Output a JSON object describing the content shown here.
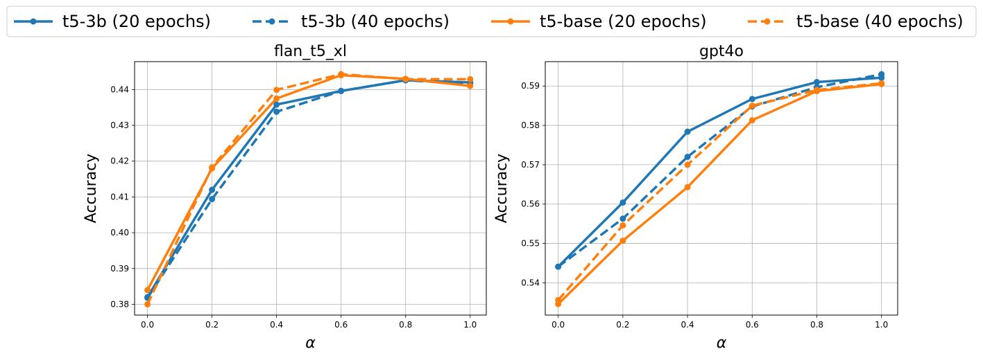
{
  "chart_data": {
    "type": "line",
    "legend": {
      "placement": "top",
      "entries": [
        {
          "label": "t5-3b (20 epochs)",
          "color": "#1f77b4",
          "dash": "solid"
        },
        {
          "label": "t5-3b (40 epochs)",
          "color": "#1f77b4",
          "dash": "dashed"
        },
        {
          "label": "t5-base (20 epochs)",
          "color": "#ff7f0e",
          "dash": "solid"
        },
        {
          "label": "t5-base (40 epochs)",
          "color": "#ff7f0e",
          "dash": "dashed"
        }
      ]
    },
    "charts": [
      {
        "title": "flan_t5_xl",
        "xlabel": "α",
        "ylabel": "Accuracy",
        "x": [
          0.0,
          0.2,
          0.4,
          0.6,
          0.8,
          1.0
        ],
        "xlim": [
          -0.04,
          1.05
        ],
        "ylim": [
          0.377,
          0.4478
        ],
        "xticks": [
          0.0,
          0.2,
          0.4,
          0.6,
          0.8,
          1.0
        ],
        "xtick_labels": [
          "0.0",
          "0.2",
          "0.4",
          "0.6",
          "0.8",
          "1.0"
        ],
        "yticks": [
          0.38,
          0.39,
          0.4,
          0.41,
          0.42,
          0.43,
          0.44
        ],
        "ytick_labels": [
          "0.38",
          "0.39",
          "0.40",
          "0.41",
          "0.42",
          "0.43",
          "0.44"
        ],
        "grid": true,
        "series": [
          {
            "name": "t5-3b (20 epochs)",
            "color": "#1f77b4",
            "dash": "solid",
            "values": [
              0.382,
              0.412,
              0.4358,
              0.4396,
              0.4426,
              0.442
            ]
          },
          {
            "name": "t5-3b (40 epochs)",
            "color": "#1f77b4",
            "dash": "dashed",
            "values": [
              0.3818,
              0.4094,
              0.4338,
              0.4396,
              0.4426,
              0.4416
            ]
          },
          {
            "name": "t5-base (20 epochs)",
            "color": "#ff7f0e",
            "dash": "solid",
            "values": [
              0.384,
              0.418,
              0.4375,
              0.444,
              0.443,
              0.441
            ]
          },
          {
            "name": "t5-base (40 epochs)",
            "color": "#ff7f0e",
            "dash": "dashed",
            "values": [
              0.38,
              0.4183,
              0.4399,
              0.4443,
              0.4429,
              0.4429
            ]
          }
        ]
      },
      {
        "title": "gpt4o",
        "xlabel": "α",
        "ylabel": "Accuracy",
        "x": [
          0.0,
          0.2,
          0.4,
          0.6,
          0.8,
          1.0
        ],
        "xlim": [
          -0.04,
          1.05
        ],
        "ylim": [
          0.5318,
          0.5962
        ],
        "xticks": [
          0.0,
          0.2,
          0.4,
          0.6,
          0.8,
          1.0
        ],
        "xtick_labels": [
          "0.0",
          "0.2",
          "0.4",
          "0.6",
          "0.8",
          "1.0"
        ],
        "yticks": [
          0.54,
          0.55,
          0.56,
          0.57,
          0.58,
          0.59
        ],
        "ytick_labels": [
          "0.54",
          "0.55",
          "0.56",
          "0.57",
          "0.58",
          "0.59"
        ],
        "grid": true,
        "series": [
          {
            "name": "t5-3b (20 epochs)",
            "color": "#1f77b4",
            "dash": "solid",
            "values": [
              0.5441,
              0.5604,
              0.5784,
              0.5867,
              0.591,
              0.5921
            ]
          },
          {
            "name": "t5-3b (40 epochs)",
            "color": "#1f77b4",
            "dash": "dashed",
            "values": [
              0.5441,
              0.5563,
              0.572,
              0.5848,
              0.5897,
              0.593
            ]
          },
          {
            "name": "t5-base (20 epochs)",
            "color": "#ff7f0e",
            "dash": "solid",
            "values": [
              0.5346,
              0.5507,
              0.5643,
              0.5813,
              0.5887,
              0.5905
            ]
          },
          {
            "name": "t5-base (40 epochs)",
            "color": "#ff7f0e",
            "dash": "dashed",
            "values": [
              0.5356,
              0.5546,
              0.57,
              0.585,
              0.589,
              0.5907
            ]
          }
        ]
      }
    ]
  }
}
